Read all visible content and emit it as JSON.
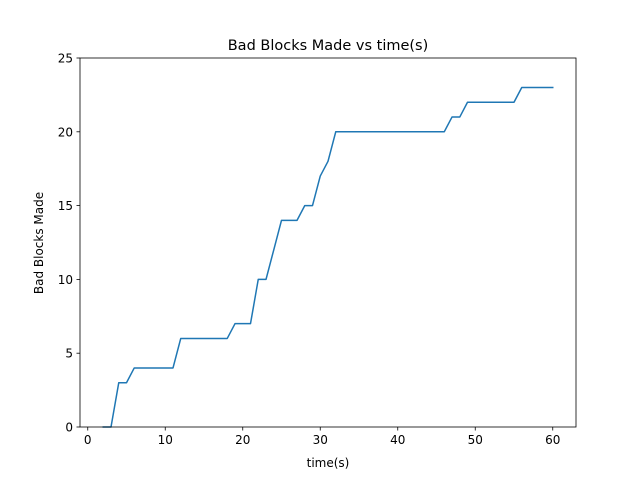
{
  "chart_data": {
    "type": "line",
    "title": "Bad Blocks Made vs time(s)",
    "xlabel": "time(s)",
    "ylabel": "Bad Blocks Made",
    "xlim": [
      -1,
      63
    ],
    "ylim": [
      0,
      25
    ],
    "xticks": [
      0,
      10,
      20,
      30,
      40,
      50,
      60
    ],
    "yticks": [
      0,
      5,
      10,
      15,
      20,
      25
    ],
    "grid": false,
    "line_color": "#1f77b4",
    "series": [
      {
        "x": [
          2,
          3,
          4,
          5,
          6,
          7,
          8,
          9,
          10,
          11,
          12,
          13,
          14,
          15,
          16,
          17,
          18,
          19,
          20,
          21,
          22,
          23,
          24,
          25,
          26,
          27,
          28,
          29,
          30,
          31,
          32,
          33,
          34,
          35,
          36,
          37,
          38,
          39,
          40,
          41,
          42,
          43,
          44,
          45,
          46,
          47,
          48,
          49,
          50,
          51,
          52,
          53,
          54,
          55,
          56,
          57,
          58,
          59,
          60
        ],
        "values": [
          0,
          0,
          3,
          3,
          4,
          4,
          4,
          4,
          4,
          4,
          6,
          6,
          6,
          6,
          6,
          6,
          6,
          7,
          7,
          7,
          10,
          10,
          12,
          14,
          14,
          14,
          15,
          15,
          17,
          18,
          20,
          20,
          20,
          20,
          20,
          20,
          20,
          20,
          20,
          20,
          20,
          20,
          20,
          20,
          20,
          21,
          21,
          22,
          22,
          22,
          22,
          22,
          22,
          22,
          23,
          23,
          23,
          23,
          23
        ]
      }
    ]
  }
}
